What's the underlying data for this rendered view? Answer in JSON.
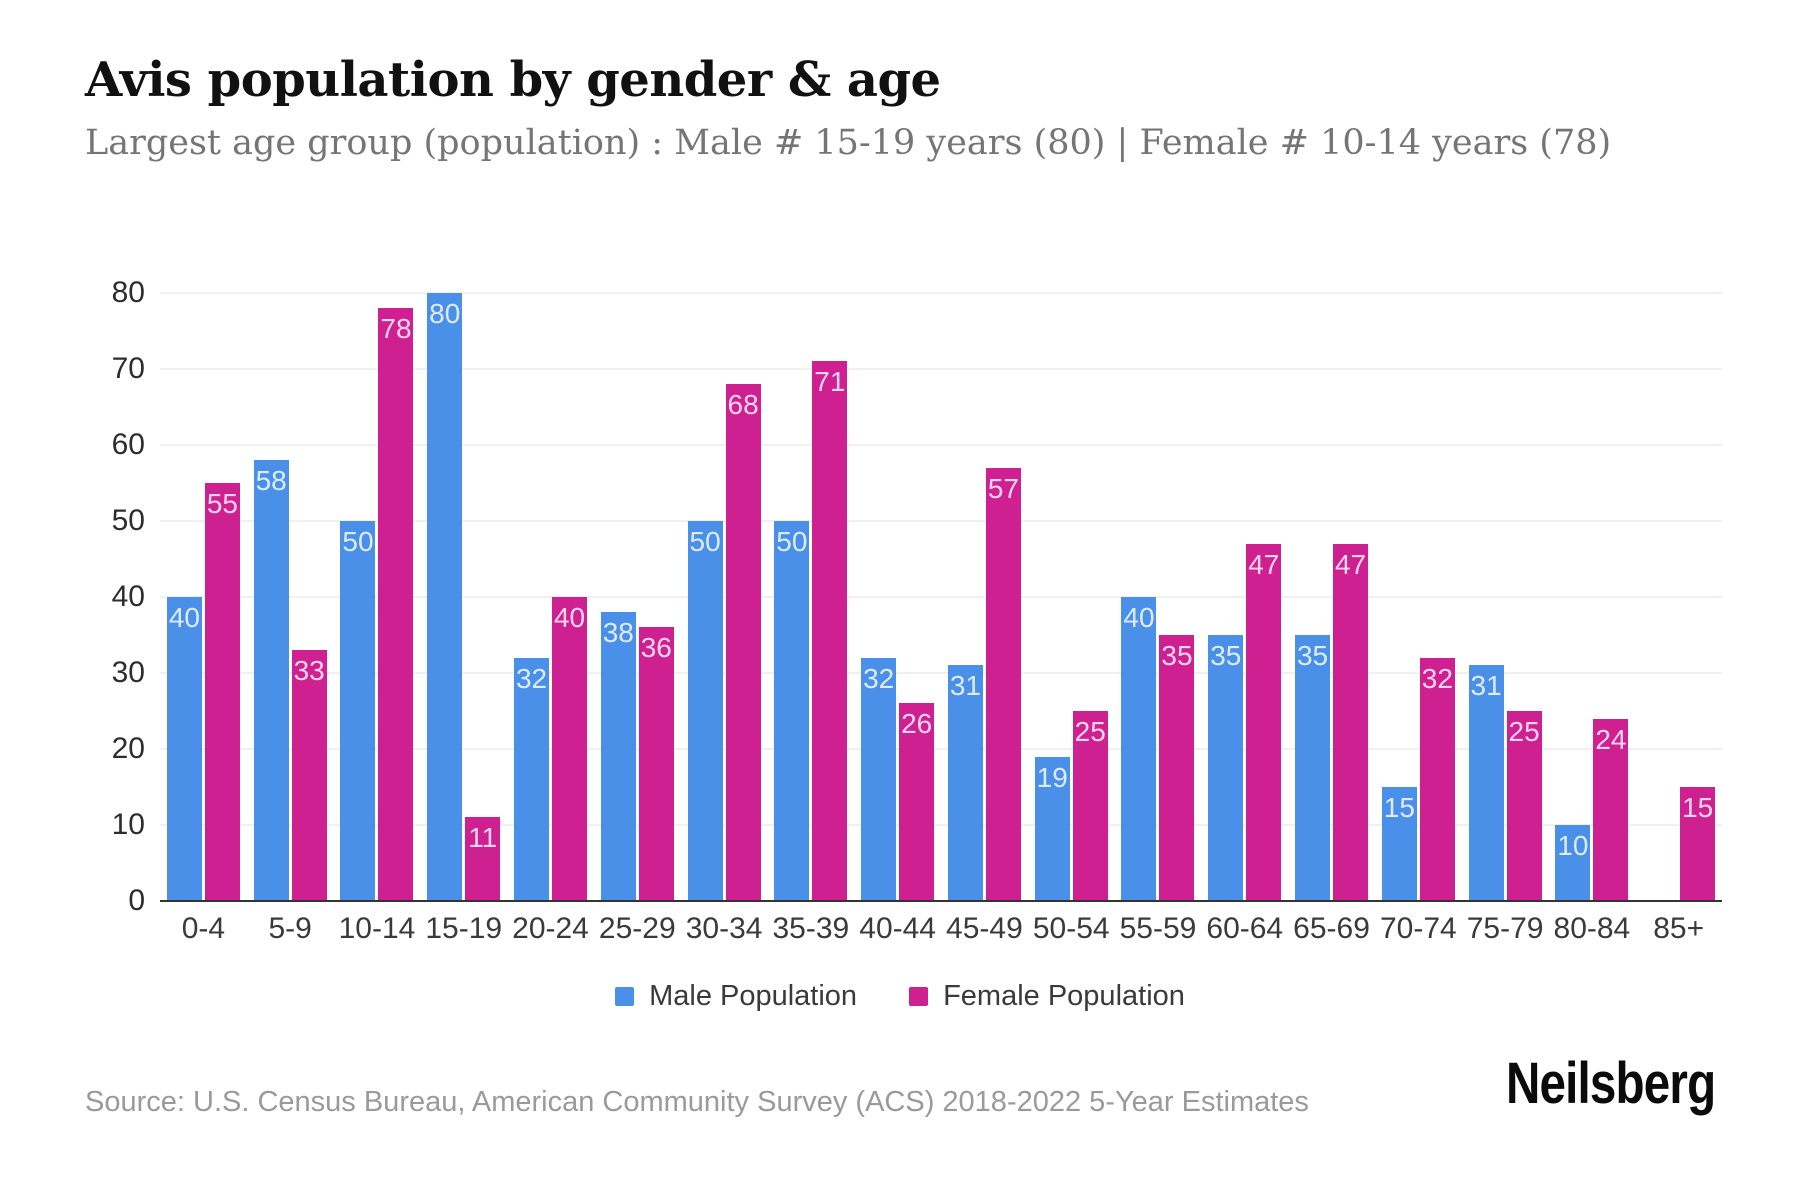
{
  "header": {
    "title": "Avis population by gender & age",
    "subtitle": "Largest age group (population) : Male # 15-19 years (80) | Female # 10-14 years (78)"
  },
  "chart_data": {
    "type": "bar",
    "title": "Avis population by gender & age",
    "subtitle": "Largest age group (population) : Male # 15-19 years (80) | Female # 10-14 years (78)",
    "categories": [
      "0-4",
      "5-9",
      "10-14",
      "15-19",
      "20-24",
      "25-29",
      "30-34",
      "35-39",
      "40-44",
      "45-49",
      "50-54",
      "55-59",
      "60-64",
      "65-69",
      "70-74",
      "75-79",
      "80-84",
      "85+"
    ],
    "series": [
      {
        "name": "Male Population",
        "color": "#4a90e8",
        "values": [
          40,
          58,
          50,
          80,
          32,
          38,
          50,
          50,
          32,
          31,
          19,
          40,
          35,
          35,
          15,
          31,
          10,
          0
        ]
      },
      {
        "name": "Female Population",
        "color": "#cf2092",
        "values": [
          55,
          33,
          78,
          11,
          40,
          36,
          68,
          71,
          26,
          57,
          25,
          35,
          47,
          47,
          32,
          25,
          24,
          15
        ]
      }
    ],
    "xlabel": "",
    "ylabel": "",
    "ylim": [
      0,
      80
    ],
    "yticks": [
      0,
      10,
      20,
      30,
      40,
      50,
      60,
      70,
      80
    ],
    "grid": true,
    "legend_position": "bottom",
    "bar_value_labels": true,
    "bar_label_color": "rgba(255,255,255,0.82)",
    "gridline_color": "#f2eff2",
    "axis_color": "#333333"
  },
  "footer": {
    "source": "Source: U.S. Census Bureau, American Community Survey (ACS) 2018-2022 5-Year Estimates",
    "brand": "Neilsberg"
  }
}
